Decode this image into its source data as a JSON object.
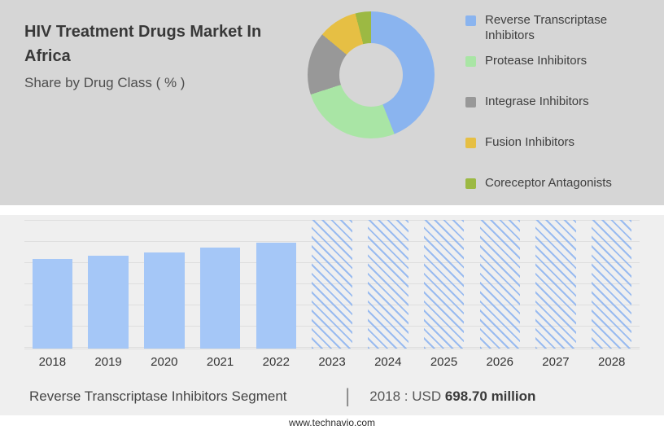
{
  "header": {
    "title": "HIV Treatment Drugs Market In Africa",
    "subtitle": "Share by Drug Class ( % )"
  },
  "chart_data": [
    {
      "type": "pie",
      "title": "Share by Drug Class ( % )",
      "donut": true,
      "legend_position": "right",
      "labels": [
        "Reverse Transcriptase Inhibitors",
        "Protease Inhibitors",
        "Integrase Inhibitors",
        "Fusion Inhibitors",
        "Coreceptor Antagonists"
      ],
      "values": [
        44,
        26,
        16,
        10,
        4
      ],
      "colors": [
        "#8ab4ef",
        "#a9e5a5",
        "#989898",
        "#e6bf44",
        "#9cb943"
      ]
    },
    {
      "type": "bar",
      "title": "Reverse Transcriptase Inhibitors Segment (USD million)",
      "categories": [
        "2018",
        "2019",
        "2020",
        "2021",
        "2022",
        "2023",
        "2024",
        "2025",
        "2026",
        "2027",
        "2028"
      ],
      "series": [
        {
          "name": "Market size (USD million)",
          "values": [
            698.7,
            724,
            750,
            783,
            823,
            null,
            null,
            null,
            null,
            null,
            null
          ]
        }
      ],
      "actual_years": [
        "2018",
        "2019",
        "2020",
        "2021",
        "2022"
      ],
      "forecast_years": [
        "2023",
        "2024",
        "2025",
        "2026",
        "2027",
        "2028"
      ],
      "axis_max": 1000,
      "grid": true,
      "bar_color": "#a5c7f7",
      "data_label_shown": "2018 : USD 698.70 million"
    }
  ],
  "footer": {
    "segment_label": "Reverse Transcriptase Inhibitors Segment",
    "separator": "|",
    "value_prefix": "2018 : USD ",
    "value_bold": "698.70 million"
  },
  "website": "www.technavio.com"
}
